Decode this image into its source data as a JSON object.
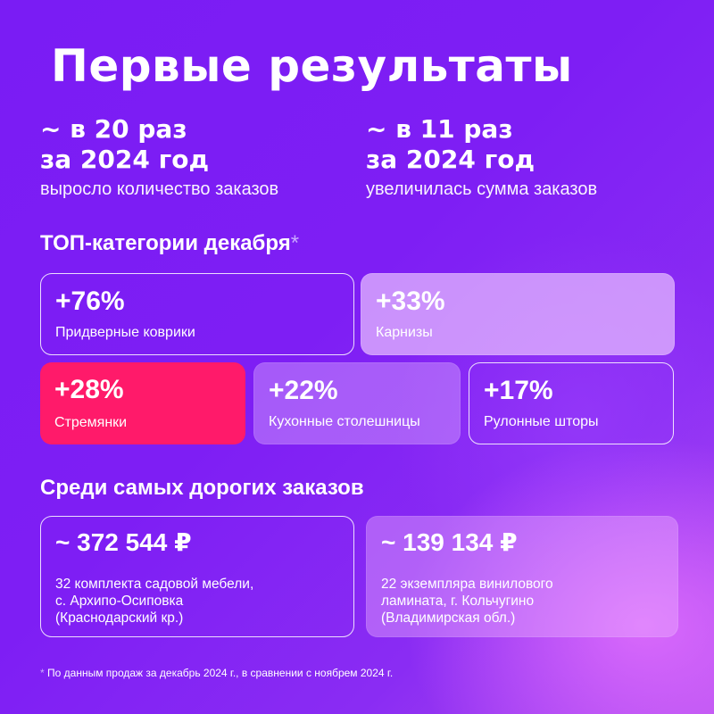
{
  "title": "Первые результаты",
  "stats": [
    {
      "line1": "~ в 20 раз",
      "line2": "за 2024 год",
      "sub": "выросло количество заказов"
    },
    {
      "line1": "~ в 11 раз",
      "line2": "за 2024 год",
      "sub": "увеличилась сумма заказов"
    }
  ],
  "top_categories": {
    "heading": "ТОП-категории декабря",
    "star": "*",
    "items": [
      {
        "pct": "+76%",
        "label": "Придверные коврики"
      },
      {
        "pct": "+33%",
        "label": "Карнизы"
      },
      {
        "pct": "+28%",
        "label": "Стремянки"
      },
      {
        "pct": "+22%",
        "label": "Кухонные столешницы"
      },
      {
        "pct": "+17%",
        "label": "Рулонные шторы"
      }
    ]
  },
  "expensive_orders": {
    "heading": "Среди самых дорогих заказов",
    "items": [
      {
        "price": "~ 372 544 ₽",
        "lines": [
          "32 комплекта садовой мебели,",
          "с. Архипо-Осиповка",
          "(Краснодарский кр.)"
        ]
      },
      {
        "price": "~ 139 134 ₽",
        "lines": [
          "22 экземпляра винилового",
          "ламината, г. Кольчугино",
          "(Владимирская обл.)"
        ]
      }
    ]
  },
  "footnote": {
    "star": "*",
    "text": " По данным продаж за декабрь 2024 г., в сравнении с ноябрем 2024 г."
  },
  "colors": {
    "background": "#7e1ef4",
    "accent_pink": "#ff1a6a",
    "light_lilac": "#e7beff"
  }
}
